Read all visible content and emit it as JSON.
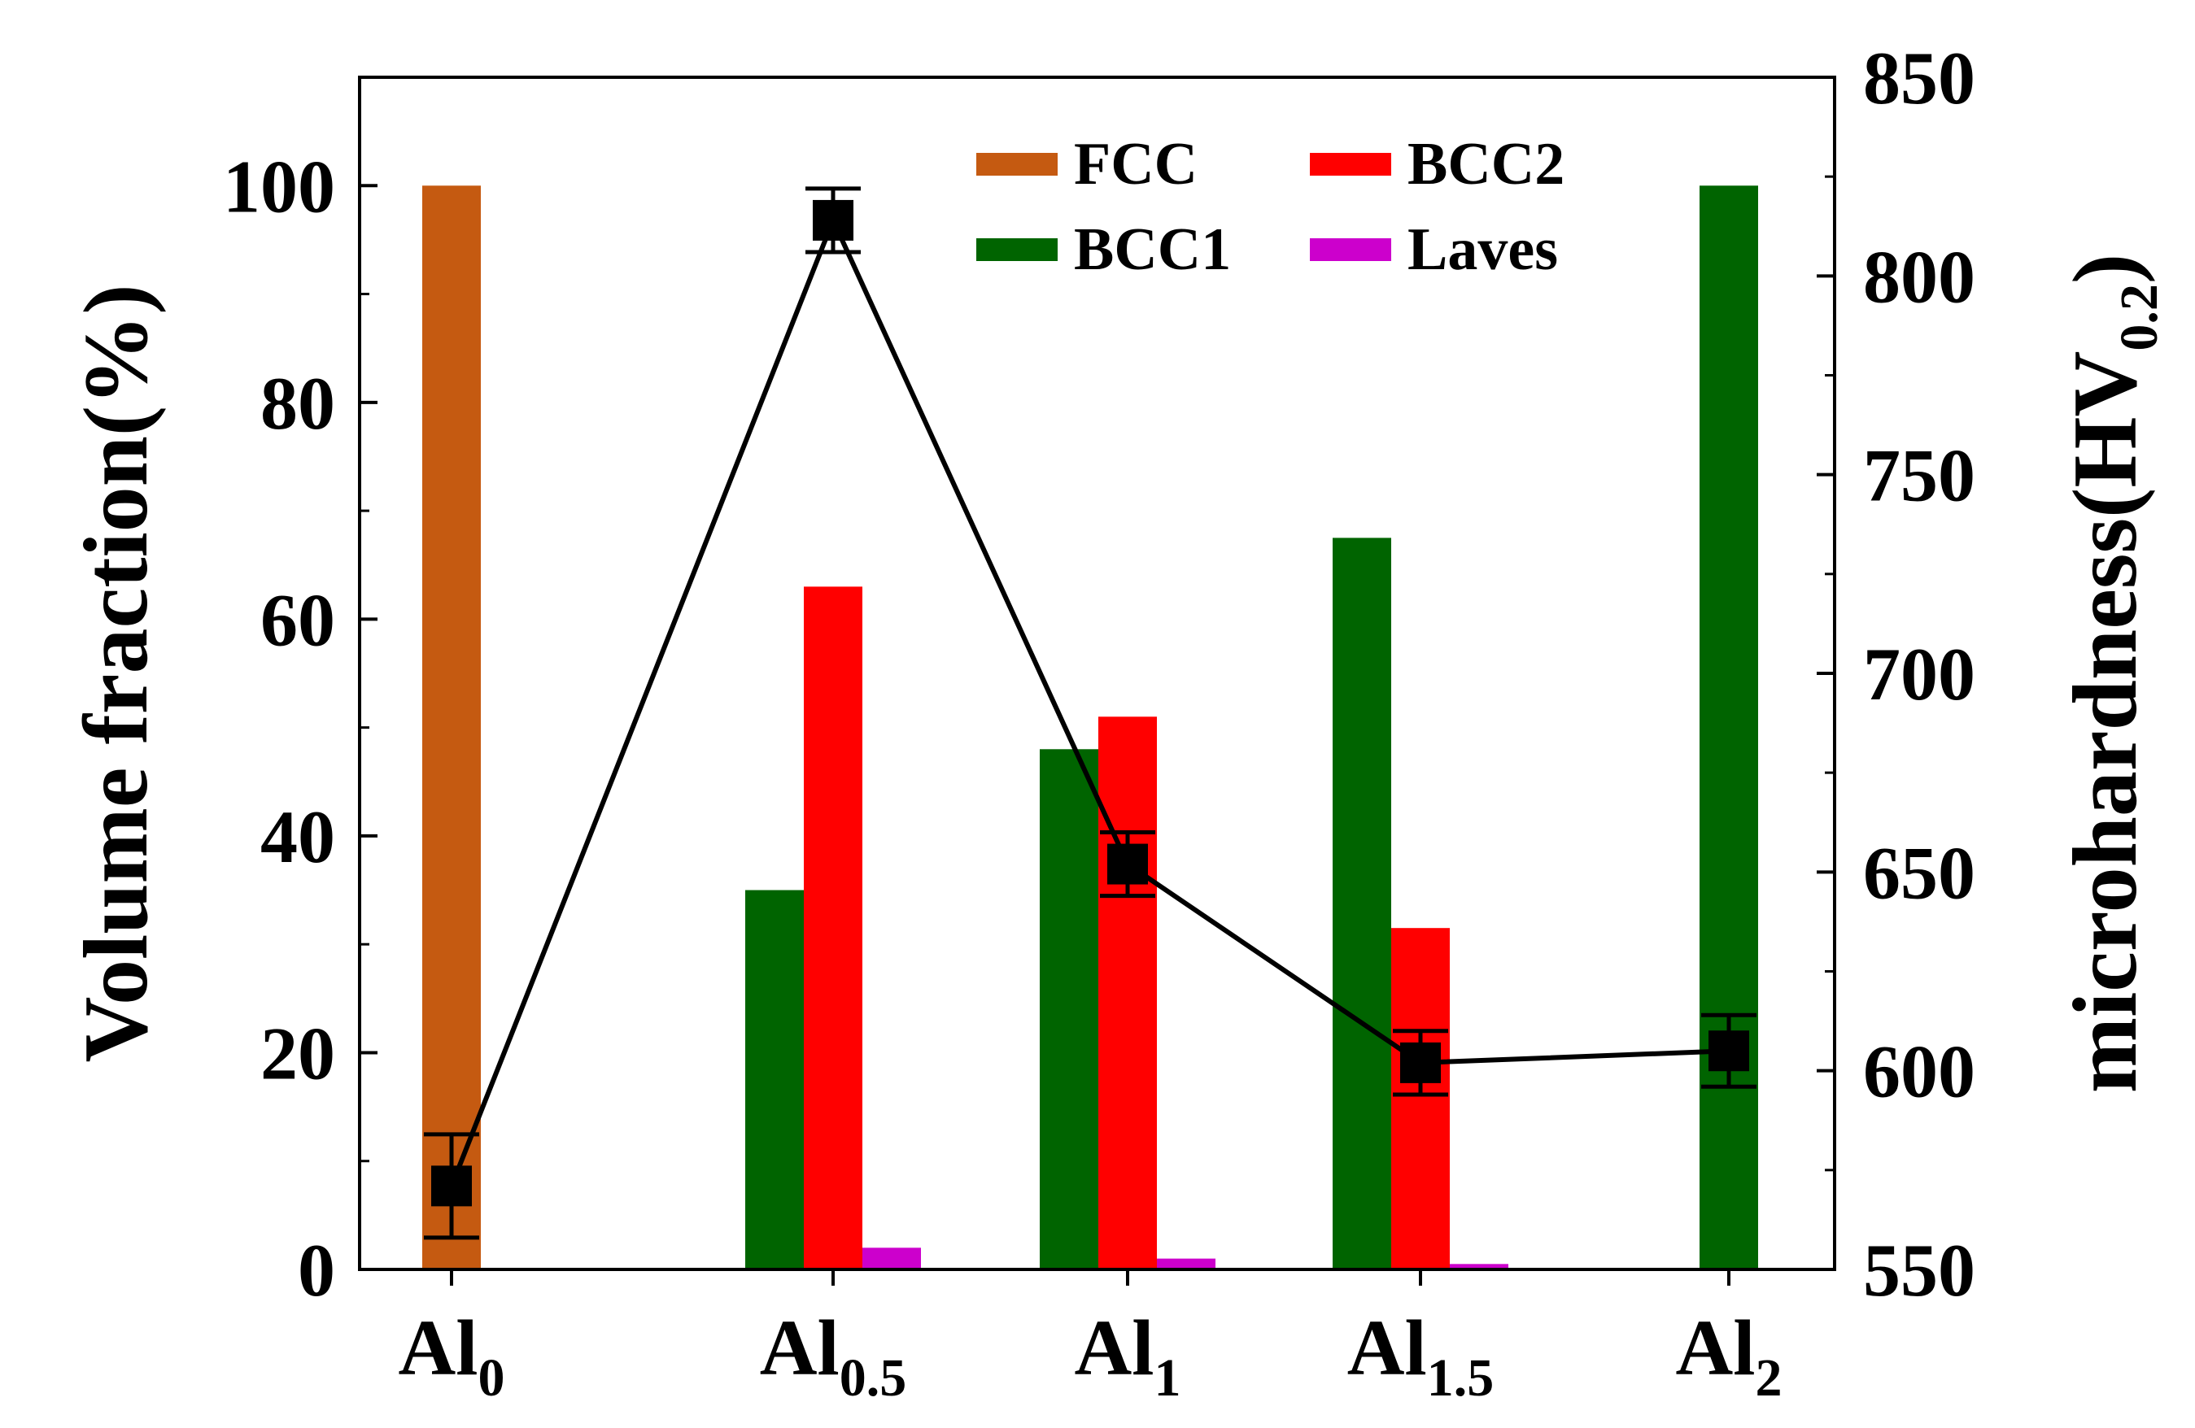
{
  "chart_data": {
    "type": "bar",
    "categories": [
      {
        "base": "Al",
        "sub": "0"
      },
      {
        "base": "Al",
        "sub": "0.5"
      },
      {
        "base": "Al",
        "sub": "1"
      },
      {
        "base": "Al",
        "sub": "1.5"
      },
      {
        "base": "Al",
        "sub": "2"
      }
    ],
    "series": [
      {
        "name": "FCC",
        "color": "#c55a11",
        "values": [
          100,
          0,
          0,
          0,
          0
        ]
      },
      {
        "name": "BCC1",
        "color": "#006400",
        "values": [
          0,
          35,
          48,
          67.5,
          100
        ]
      },
      {
        "name": "BCC2",
        "color": "#ff0000",
        "values": [
          0,
          63,
          51,
          31.5,
          0
        ]
      },
      {
        "name": "Laves",
        "color": "#cc00cc",
        "values": [
          0,
          2,
          1,
          0.5,
          0
        ]
      }
    ],
    "line_series": {
      "name": "microhardness",
      "color": "#000000",
      "values": [
        571,
        814,
        652,
        602,
        605
      ],
      "errors": [
        13,
        8,
        8,
        8,
        9
      ]
    },
    "yaxis_left": {
      "label": "Volume fraction(%)",
      "range": [
        0,
        110
      ],
      "ticks": [
        0,
        20,
        40,
        60,
        80,
        100
      ]
    },
    "yaxis_right": {
      "label_main": "microhardness(HV",
      "label_sub": "0.2",
      "label_close": ")",
      "range": [
        550,
        850
      ],
      "ticks": [
        550,
        600,
        650,
        700,
        750,
        800,
        850
      ]
    },
    "legend": {
      "position": "top-center",
      "columns": 2,
      "order": [
        "FCC",
        "BCC2",
        "BCC1",
        "Laves"
      ]
    }
  }
}
